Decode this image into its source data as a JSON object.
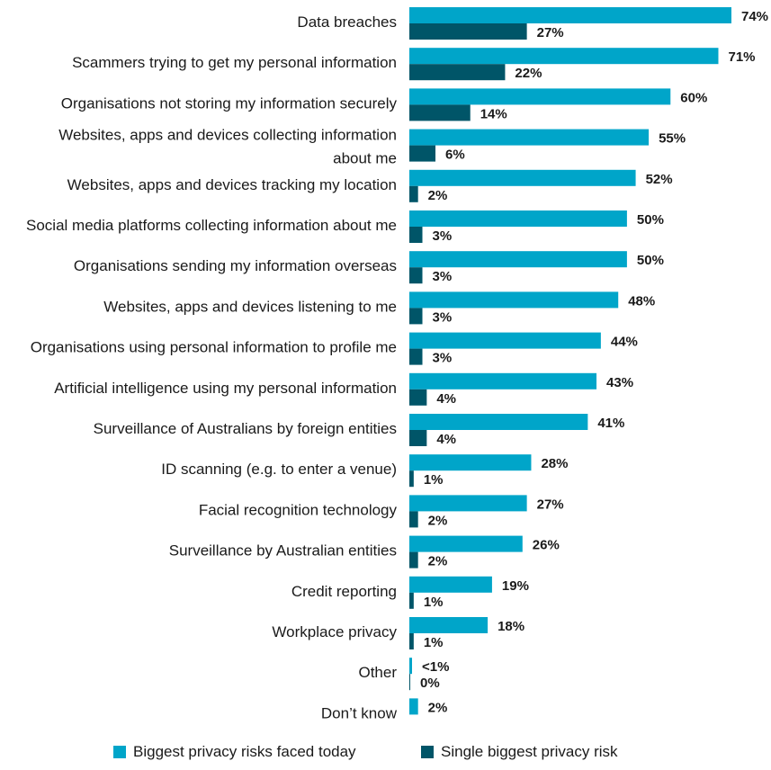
{
  "chart_data": {
    "type": "bar",
    "orientation": "horizontal",
    "title": "",
    "xlabel": "",
    "ylabel": "",
    "xlim": [
      0,
      80
    ],
    "grid": false,
    "legend_placement": "bottom",
    "categories": [
      "Data breaches",
      "Scammers trying to get my personal information",
      "Organisations not storing my information securely",
      "Websites, apps and devices collecting information about me",
      "Websites, apps and devices tracking my location",
      "Social media platforms collecting information about me",
      "Organisations sending my information overseas",
      "Websites, apps and devices listening to me",
      "Organisations using personal information to profile me",
      "Artificial intelligence using my personal information",
      "Surveillance of Australians by foreign entities",
      "ID scanning (e.g. to enter a venue)",
      "Facial recognition technology",
      "Surveillance by Australian entities",
      "Credit reporting",
      "Workplace privacy",
      "Other",
      "Don’t know"
    ],
    "series": [
      {
        "name": "Biggest privacy risks faced today",
        "color": "#00a5c9",
        "values": [
          74,
          71,
          60,
          55,
          52,
          50,
          50,
          48,
          44,
          43,
          41,
          28,
          27,
          26,
          19,
          18,
          0.4,
          2
        ],
        "labels": [
          "74%",
          "71%",
          "60%",
          "55%",
          "52%",
          "50%",
          "50%",
          "48%",
          "44%",
          "43%",
          "41%",
          "28%",
          "27%",
          "26%",
          "19%",
          "18%",
          "<1%",
          "2%"
        ]
      },
      {
        "name": "Single biggest privacy risk",
        "color": "#005568",
        "values": [
          27,
          22,
          14,
          6,
          2,
          3,
          3,
          3,
          3,
          4,
          4,
          1,
          2,
          2,
          1,
          1,
          0,
          null
        ],
        "labels": [
          "27%",
          "22%",
          "14%",
          "6%",
          "2%",
          "3%",
          "3%",
          "3%",
          "3%",
          "4%",
          "4%",
          "1%",
          "2%",
          "2%",
          "1%",
          "1%",
          "0%",
          null
        ]
      }
    ]
  }
}
